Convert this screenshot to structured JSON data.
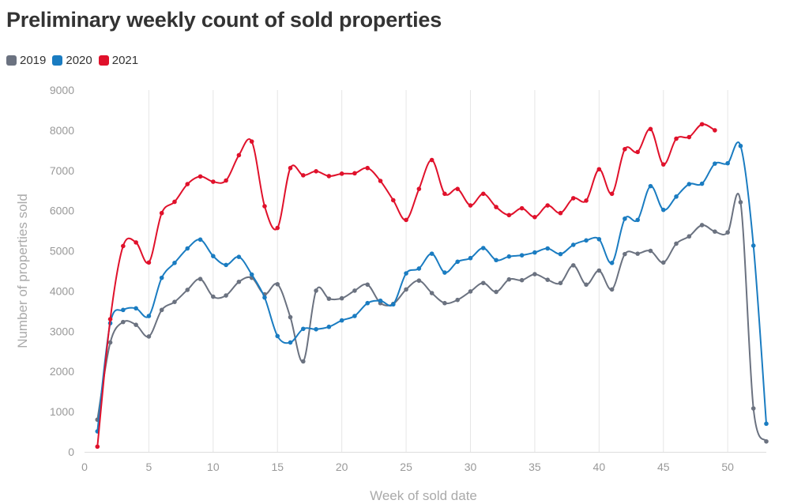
{
  "title": "Preliminary weekly count of sold properties",
  "chart_data": {
    "type": "line",
    "title": "Preliminary weekly count of sold properties",
    "xlabel": "Week of sold date",
    "ylabel": "Number of properties sold",
    "xlim": [
      0,
      53
    ],
    "ylim": [
      0,
      9000
    ],
    "xticks": [
      0,
      5,
      10,
      15,
      20,
      25,
      30,
      35,
      40,
      45,
      50
    ],
    "yticks": [
      0,
      1000,
      2000,
      3000,
      4000,
      5000,
      6000,
      7000,
      8000,
      9000
    ],
    "xtick_labels": [
      "0",
      "5",
      "10",
      "15",
      "20",
      "25",
      "30",
      "35",
      "40",
      "45",
      "50"
    ],
    "ytick_labels": [
      "0",
      "1000",
      "2000",
      "3000",
      "4000",
      "5000",
      "6000",
      "7000",
      "8000",
      "9000"
    ],
    "grid": "vertical",
    "legend_position": "top-left",
    "series": [
      {
        "name": "2019",
        "color": "#6b7280",
        "x": [
          1,
          2,
          3,
          4,
          5,
          6,
          7,
          8,
          9,
          10,
          11,
          12,
          13,
          14,
          15,
          16,
          17,
          18,
          19,
          20,
          21,
          22,
          23,
          24,
          25,
          26,
          27,
          28,
          29,
          30,
          31,
          32,
          33,
          34,
          35,
          36,
          37,
          38,
          39,
          40,
          41,
          42,
          43,
          44,
          45,
          46,
          47,
          48,
          49,
          50,
          51,
          52,
          53
        ],
        "values": [
          800,
          2720,
          3230,
          3160,
          2870,
          3530,
          3730,
          4030,
          4300,
          3860,
          3890,
          4230,
          4330,
          3920,
          4170,
          3350,
          2250,
          4010,
          3810,
          3820,
          4010,
          4160,
          3700,
          3680,
          4040,
          4260,
          3950,
          3700,
          3780,
          3990,
          4200,
          3980,
          4290,
          4270,
          4420,
          4280,
          4200,
          4640,
          4160,
          4510,
          4040,
          4920,
          4930,
          5000,
          4710,
          5180,
          5360,
          5640,
          5480,
          5460,
          6210,
          1080,
          260
        ]
      },
      {
        "name": "2020",
        "color": "#1a7cc1",
        "x": [
          1,
          2,
          3,
          4,
          5,
          6,
          7,
          8,
          9,
          10,
          11,
          12,
          13,
          14,
          15,
          16,
          17,
          18,
          19,
          20,
          21,
          22,
          23,
          24,
          25,
          26,
          27,
          28,
          29,
          30,
          31,
          32,
          33,
          34,
          35,
          36,
          37,
          38,
          39,
          40,
          41,
          42,
          43,
          44,
          45,
          46,
          47,
          48,
          49,
          50,
          51,
          52,
          53
        ],
        "values": [
          510,
          3200,
          3530,
          3570,
          3380,
          4330,
          4700,
          5060,
          5280,
          4870,
          4650,
          4850,
          4410,
          3840,
          2880,
          2720,
          3060,
          3050,
          3110,
          3270,
          3380,
          3700,
          3760,
          3670,
          4440,
          4560,
          4930,
          4460,
          4730,
          4820,
          5070,
          4770,
          4860,
          4890,
          4960,
          5060,
          4920,
          5150,
          5260,
          5290,
          4700,
          5800,
          5770,
          6610,
          6020,
          6350,
          6660,
          6670,
          7170,
          7180,
          7610,
          5130,
          700
        ]
      },
      {
        "name": "2021",
        "color": "#e0112b",
        "x": [
          1,
          2,
          3,
          4,
          5,
          6,
          7,
          8,
          9,
          10,
          11,
          12,
          13,
          14,
          15,
          16,
          17,
          18,
          19,
          20,
          21,
          22,
          23,
          24,
          25,
          26,
          27,
          28,
          29,
          30,
          31,
          32,
          33,
          34,
          35,
          36,
          37,
          38,
          39,
          40,
          41,
          42,
          43,
          44,
          45,
          46,
          47,
          48,
          49
        ],
        "values": [
          130,
          3300,
          5120,
          5210,
          4710,
          5940,
          6220,
          6660,
          6850,
          6720,
          6750,
          7380,
          7720,
          6110,
          5570,
          7060,
          6880,
          6980,
          6860,
          6920,
          6930,
          7060,
          6740,
          6260,
          5770,
          6540,
          7260,
          6420,
          6540,
          6130,
          6420,
          6090,
          5890,
          6060,
          5840,
          6130,
          5940,
          6310,
          6250,
          7030,
          6420,
          7530,
          7460,
          8030,
          7150,
          7790,
          7830,
          8150,
          8000
        ]
      }
    ]
  }
}
